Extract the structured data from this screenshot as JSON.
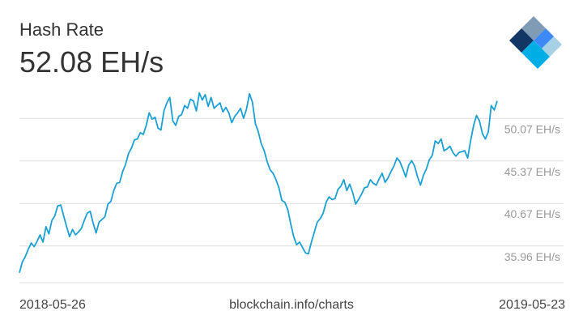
{
  "header": {
    "title": "Hash Rate",
    "current_value": "52.08 EH/s"
  },
  "footer": {
    "start_date": "2018-05-26",
    "source": "blockchain.info/charts",
    "end_date": "2019-05-23"
  },
  "logo": {
    "icon": "blockchain-cube-icon",
    "colors": [
      "#123765",
      "#00aee6",
      "#3d89f5",
      "#7f9bb5",
      "#a6d0e4"
    ]
  },
  "chart_data": {
    "type": "line",
    "title": "Hash Rate",
    "x_range": [
      "2018-05-26",
      "2019-05-23"
    ],
    "y_ticks": [
      35.96,
      40.67,
      45.37,
      50.07
    ],
    "y_tick_labels": [
      "35.96 EH/s",
      "40.67 EH/s",
      "45.37 EH/s",
      "50.07 EH/s"
    ],
    "ylim": [
      32.0,
      53.5
    ],
    "grid": "horizontal",
    "line_color": "#1ba0d4",
    "series": [
      {
        "values": [
          33.0,
          34.2,
          34.8,
          35.6,
          36.3,
          35.9,
          36.5,
          37.2,
          36.4,
          38.1,
          37.3,
          38.8,
          39.3,
          40.4,
          40.5,
          39.3,
          38.1,
          37.0,
          37.8,
          37.2,
          37.5,
          37.9,
          38.8,
          39.6,
          39.8,
          38.5,
          37.4,
          38.6,
          38.9,
          39.2,
          40.6,
          40.9,
          42.1,
          42.9,
          43.0,
          44.2,
          45.0,
          46.2,
          46.8,
          47.7,
          47.8,
          48.5,
          48.3,
          49.3,
          50.7,
          50.0,
          50.2,
          49.0,
          48.8,
          50.9,
          51.8,
          52.4,
          49.8,
          49.3,
          50.3,
          50.5,
          51.5,
          51.2,
          52.2,
          52.0,
          50.9,
          52.9,
          52.1,
          52.7,
          51.4,
          52.4,
          51.2,
          51.5,
          51.8,
          50.8,
          51.3,
          50.7,
          49.6,
          50.3,
          50.7,
          51.2,
          50.1,
          51.1,
          52.8,
          51.9,
          49.5,
          48.6,
          47.3,
          46.5,
          45.3,
          44.4,
          44.0,
          43.3,
          42.4,
          41.0,
          40.8,
          40.0,
          38.4,
          37.0,
          36.1,
          36.4,
          35.8,
          35.2,
          35.1,
          36.4,
          37.5,
          38.6,
          39.0,
          39.6,
          40.8,
          41.4,
          41.1,
          41.2,
          42.2,
          42.6,
          43.3,
          42.1,
          42.8,
          41.9,
          40.6,
          41.1,
          41.7,
          42.4,
          42.5,
          43.3,
          42.9,
          42.7,
          43.4,
          44.0,
          43.0,
          43.5,
          44.2,
          44.8,
          45.7,
          45.3,
          44.5,
          43.6,
          44.9,
          45.4,
          44.8,
          43.6,
          42.7,
          43.8,
          44.5,
          45.5,
          46.0,
          47.6,
          47.3,
          47.8,
          46.5,
          46.7,
          47.0,
          46.3,
          45.9,
          46.3,
          46.4,
          46.5,
          45.7,
          47.6,
          49.3,
          50.4,
          49.8,
          48.4,
          47.8,
          48.6,
          51.5,
          51.0,
          52.0
        ]
      }
    ]
  }
}
